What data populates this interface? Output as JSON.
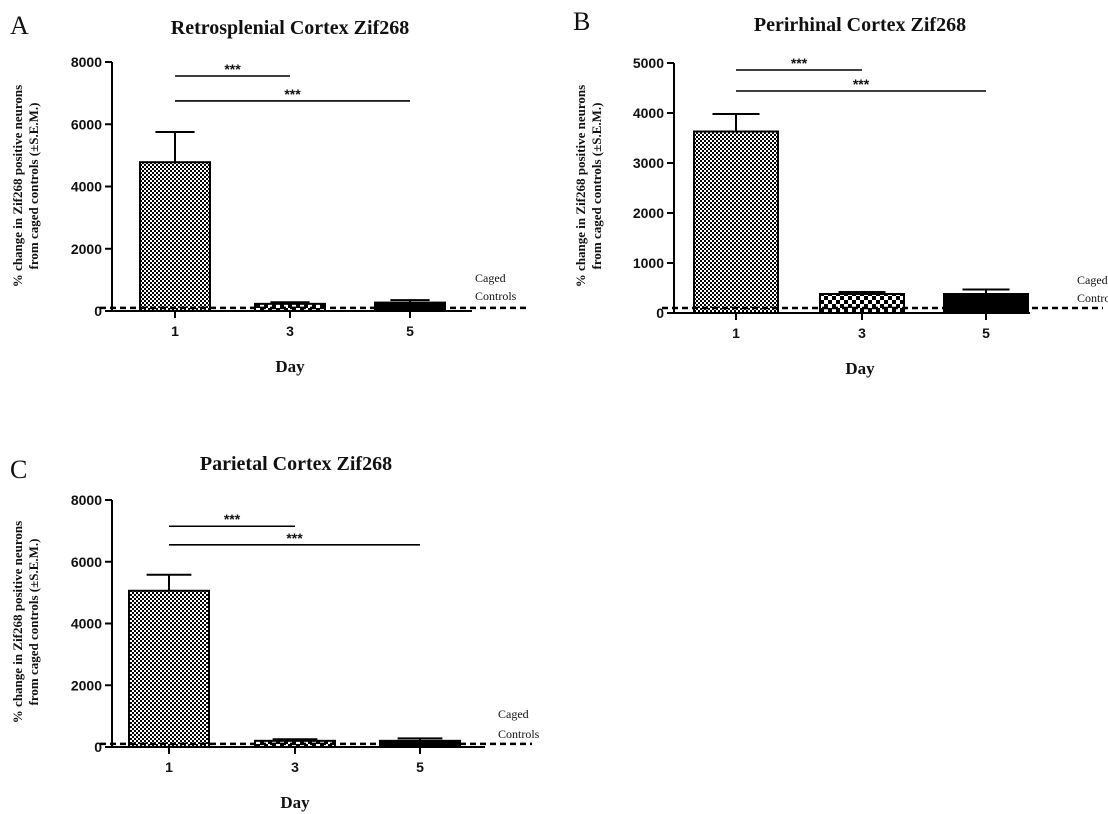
{
  "figure": {
    "panels": [
      "A",
      "B",
      "C"
    ],
    "pattern_colors": {
      "fill_dark": "#000000",
      "fill_light": "#ffffff"
    }
  },
  "chart_data": [
    {
      "panel": "A",
      "type": "bar",
      "title": "Retrosplenial Cortex Zif268",
      "xlabel": "Day",
      "ylabel_lines": [
        "% change in Zif268 positive neurons",
        "from caged controls (±S.E.M.)"
      ],
      "categories": [
        "1",
        "3",
        "5"
      ],
      "values": [
        4780,
        230,
        270
      ],
      "errors": [
        970,
        50,
        80
      ],
      "patterns": [
        "fine-check",
        "coarse-check",
        "solid"
      ],
      "ylim": [
        0,
        8000
      ],
      "yticks": [
        "0",
        "2000",
        "4000",
        "6000",
        "8000"
      ],
      "baseline": 100,
      "baseline_label_lines": [
        "Caged",
        "Controls"
      ],
      "significance": [
        {
          "from": 0,
          "to": 1,
          "label": "***",
          "y": 7550
        },
        {
          "from": 0,
          "to": 2,
          "label": "***",
          "y": 6750
        }
      ]
    },
    {
      "panel": "B",
      "type": "bar",
      "title": "Perirhinal Cortex Zif268",
      "xlabel": "Day",
      "ylabel_lines": [
        "% change in Zif268 positive neurons",
        "from caged controls (±S.E.M.)"
      ],
      "categories": [
        "1",
        "3",
        "5"
      ],
      "values": [
        3630,
        380,
        380
      ],
      "errors": [
        350,
        40,
        90
      ],
      "patterns": [
        "fine-check",
        "coarse-check",
        "solid"
      ],
      "ylim": [
        0,
        5000
      ],
      "yticks": [
        "0",
        "1000",
        "2000",
        "3000",
        "4000",
        "5000"
      ],
      "baseline": 100,
      "baseline_label_lines": [
        "Caged",
        "Controls"
      ],
      "significance": [
        {
          "from": 0,
          "to": 1,
          "label": "***",
          "y": 4860
        },
        {
          "from": 0,
          "to": 2,
          "label": "***",
          "y": 4440
        }
      ]
    },
    {
      "panel": "C",
      "type": "bar",
      "title": "Parietal Cortex Zif268",
      "xlabel": "Day",
      "ylabel_lines": [
        "% change in Zif268 positive neurons",
        "from caged controls (±S.E.M.)"
      ],
      "categories": [
        "1",
        "3",
        "5"
      ],
      "values": [
        5060,
        200,
        200
      ],
      "errors": [
        520,
        50,
        80
      ],
      "patterns": [
        "fine-check",
        "coarse-check",
        "solid"
      ],
      "ylim": [
        0,
        8000
      ],
      "yticks": [
        "0",
        "2000",
        "4000",
        "6000",
        "8000"
      ],
      "baseline": 100,
      "baseline_label_lines": [
        "Caged",
        "Controls"
      ],
      "significance": [
        {
          "from": 0,
          "to": 1,
          "label": "***",
          "y": 7150
        },
        {
          "from": 0,
          "to": 2,
          "label": "***",
          "y": 6550
        }
      ]
    }
  ]
}
